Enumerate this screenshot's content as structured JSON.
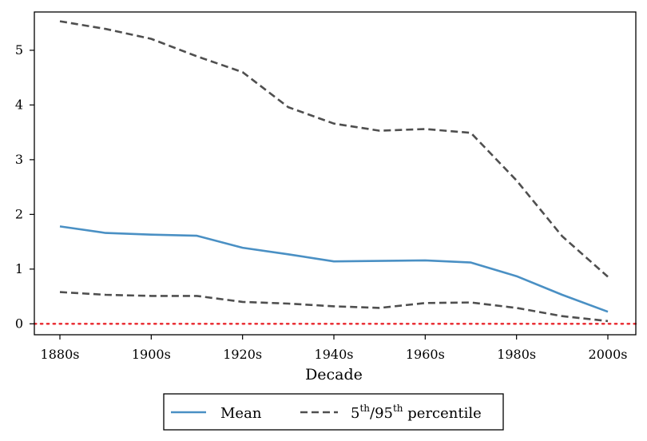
{
  "chart_data": {
    "type": "line",
    "title": "",
    "xlabel": "Decade",
    "ylabel": "",
    "categories": [
      "1880s",
      "1890s",
      "1900s",
      "1910s",
      "1920s",
      "1930s",
      "1940s",
      "1950s",
      "1960s",
      "1970s",
      "1980s",
      "1990s",
      "2000s"
    ],
    "x_tick_labels": [
      "1880s",
      "1900s",
      "1920s",
      "1940s",
      "1960s",
      "1980s",
      "2000s"
    ],
    "y_ticks": [
      0,
      1,
      2,
      3,
      4,
      5
    ],
    "ylim": [
      -0.2,
      5.7
    ],
    "grid": false,
    "legend_position": "bottom, below axes",
    "series": [
      {
        "name": "Mean",
        "style": "solid",
        "color": "#4a90c4",
        "values": [
          1.78,
          1.66,
          1.63,
          1.61,
          1.39,
          1.27,
          1.14,
          1.15,
          1.16,
          1.12,
          0.87,
          0.53,
          0.22
        ]
      },
      {
        "name": "95th percentile",
        "style": "dashed",
        "color": "#4f4f4f",
        "values": [
          5.53,
          5.39,
          5.21,
          4.89,
          4.6,
          3.96,
          3.66,
          3.53,
          3.56,
          3.49,
          2.62,
          1.6,
          0.86
        ]
      },
      {
        "name": "5th percentile",
        "style": "dashed",
        "color": "#4f4f4f",
        "values": [
          0.58,
          0.53,
          0.51,
          0.51,
          0.4,
          0.37,
          0.32,
          0.29,
          0.38,
          0.39,
          0.29,
          0.14,
          0.05
        ]
      }
    ],
    "reference_line": {
      "y": 0,
      "style": "dotted",
      "color": "#e8252b"
    }
  },
  "legend": {
    "mean_label": "Mean",
    "pct_prefix": "5",
    "pct_sup1": "th",
    "pct_mid": "/95",
    "pct_sup2": "th",
    "pct_suffix": " percentile"
  }
}
